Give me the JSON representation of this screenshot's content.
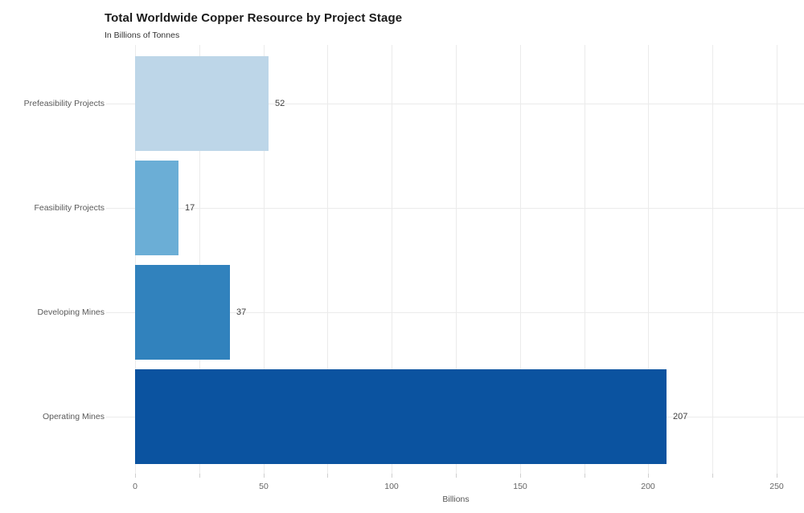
{
  "header": {
    "title": "Total Worldwide Copper Resource by Project Stage",
    "subtitle": "In Billions of Tonnes"
  },
  "chart_data": {
    "type": "bar",
    "orientation": "horizontal",
    "title": "Total Worldwide Copper Resource by Project Stage",
    "subtitle": "In Billions of Tonnes",
    "categories": [
      "Prefeasibility Projects",
      "Feasibility Projects",
      "Developing Mines",
      "Operating Mines"
    ],
    "values": [
      52,
      17,
      37,
      207
    ],
    "value_labels": [
      "52",
      "17",
      "37",
      "207"
    ],
    "bar_colors": [
      "#BDD6E8",
      "#6BAED6",
      "#3182BD",
      "#0B53A0"
    ],
    "xlabel": "Billions",
    "ylabel": "",
    "xlim": [
      0,
      260
    ],
    "xticks": [
      0,
      50,
      100,
      150,
      200,
      250
    ],
    "xtick_labels": [
      "0",
      "50",
      "100",
      "150",
      "200",
      "250"
    ],
    "minor_grid_step": 25,
    "grid": true,
    "gridline_color": "#ebebeb",
    "background_color": "#ffffff",
    "legend": false
  }
}
